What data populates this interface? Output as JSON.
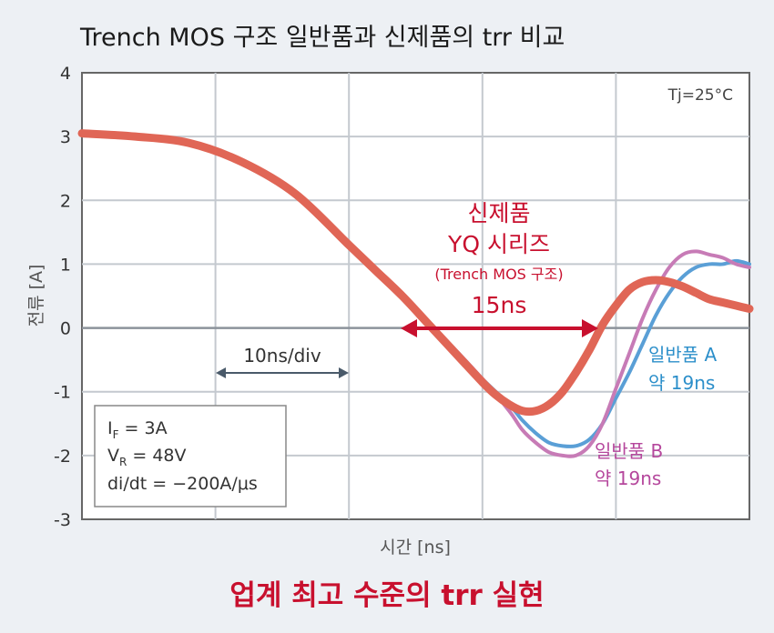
{
  "chart_data": {
    "type": "line",
    "title": "Trench MOS 구조 일반품과 신제품의 trr 비교",
    "xlabel": "시간 [ns]",
    "ylabel": "전류 [A]",
    "ylim": [
      -3,
      4
    ],
    "yticks": [
      "4",
      "3",
      "2",
      "1",
      "0",
      "-1",
      "-2",
      "-3"
    ],
    "x_div": 10,
    "xlim": [
      0,
      50
    ],
    "grid": true,
    "condition_label": "Tj=25°C",
    "params_box": {
      "line1_sym": "I",
      "line1_sub": "F",
      "line1_val": " = 3A",
      "line2_sym": "V",
      "line2_sub": "R",
      "line2_val": " = 48V",
      "line3": "di/dt = −200A/μs"
    },
    "div_label": "10ns/div",
    "series": [
      {
        "name": "일반품 A",
        "color": "#5a9fd6",
        "x": [
          0,
          4,
          8,
          12,
          16,
          20,
          24,
          28,
          30,
          32,
          33,
          34,
          35,
          36,
          37,
          38,
          39,
          40,
          41,
          42,
          43,
          44,
          45,
          46,
          47,
          48,
          49,
          50
        ],
        "y": [
          3.05,
          3.0,
          2.9,
          2.6,
          2.1,
          1.3,
          0.5,
          -0.35,
          -0.8,
          -1.2,
          -1.45,
          -1.65,
          -1.8,
          -1.85,
          -1.85,
          -1.75,
          -1.5,
          -1.1,
          -0.7,
          -0.25,
          0.2,
          0.55,
          0.8,
          0.95,
          1.0,
          1.0,
          1.05,
          1.0
        ]
      },
      {
        "name": "일반품 B",
        "color": "#c77bb6",
        "x": [
          0,
          4,
          8,
          12,
          16,
          20,
          24,
          28,
          30,
          32,
          33,
          34,
          35,
          36,
          37,
          38,
          39,
          40,
          41,
          42,
          43,
          44,
          45,
          46,
          47,
          48,
          49,
          50
        ],
        "y": [
          3.05,
          3.0,
          2.9,
          2.6,
          2.1,
          1.3,
          0.5,
          -0.35,
          -0.8,
          -1.3,
          -1.6,
          -1.8,
          -1.95,
          -2.0,
          -2.0,
          -1.85,
          -1.5,
          -0.95,
          -0.4,
          0.15,
          0.6,
          0.95,
          1.15,
          1.2,
          1.15,
          1.1,
          1.0,
          0.95
        ]
      },
      {
        "name": "신제품 YQ 시리즈",
        "color": "#e06656",
        "x": [
          0,
          4,
          8,
          12,
          16,
          20,
          22,
          24,
          26,
          28,
          30,
          31,
          32,
          33,
          34,
          35,
          36,
          37,
          38,
          39,
          40,
          41,
          42,
          43,
          44,
          45,
          46,
          47,
          48,
          49,
          50
        ],
        "y": [
          3.05,
          3.0,
          2.9,
          2.6,
          2.1,
          1.3,
          0.9,
          0.5,
          0.05,
          -0.4,
          -0.85,
          -1.05,
          -1.2,
          -1.3,
          -1.3,
          -1.2,
          -1.0,
          -0.7,
          -0.35,
          0.05,
          0.35,
          0.6,
          0.72,
          0.75,
          0.72,
          0.65,
          0.55,
          0.45,
          0.4,
          0.35,
          0.3
        ]
      }
    ],
    "annotations": {
      "new_line1": "신제품",
      "new_line2": "YQ 시리즈",
      "new_line3": "(Trench MOS 구조)",
      "new_trr": "15ns",
      "a_name": "일반품 A",
      "a_trr": "약 19ns",
      "b_name": "일반품 B",
      "b_trr": "약 19ns"
    },
    "footer": "업계 최고 수준의 trr 실현"
  }
}
